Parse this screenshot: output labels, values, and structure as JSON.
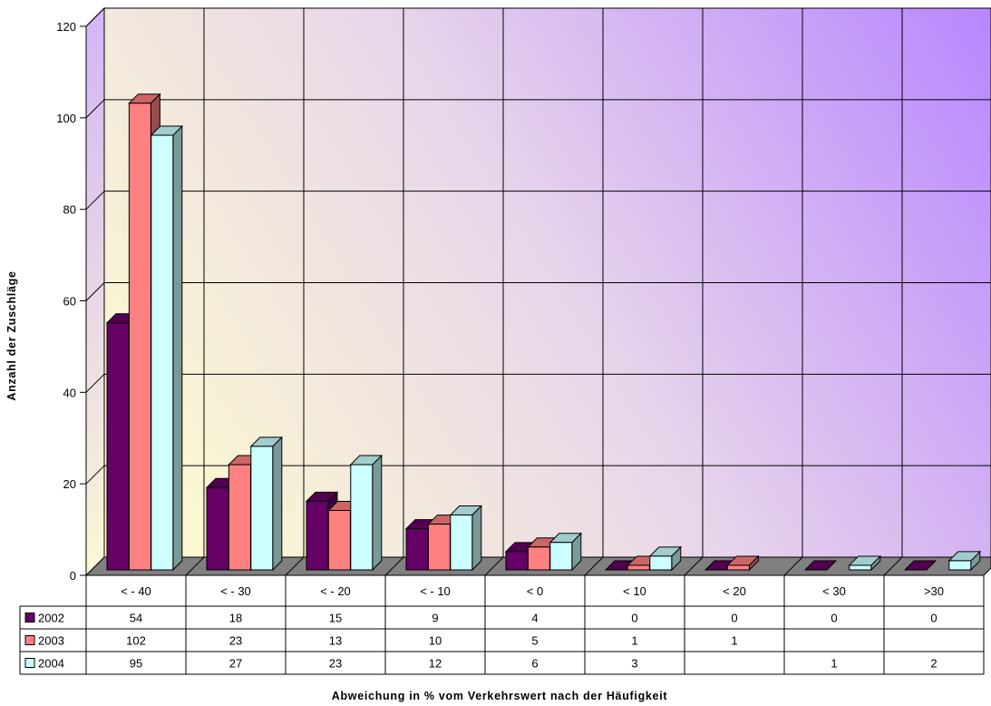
{
  "chart_data": {
    "type": "bar",
    "xlabel": "Abweichung in % vom Verkehrswert nach der Häufigkeit",
    "ylabel": "Anzahl der Zuschläge",
    "categories": [
      "< - 40",
      "< - 30",
      "< - 20",
      "< - 10",
      "< 0",
      "< 10",
      "< 20",
      "< 30",
      ">30"
    ],
    "series": [
      {
        "name": "2002",
        "color": "#660066",
        "values": [
          54,
          18,
          15,
          9,
          4,
          0,
          0,
          0,
          0
        ]
      },
      {
        "name": "2003",
        "color": "#FF8080",
        "values": [
          102,
          23,
          13,
          10,
          5,
          1,
          1,
          null,
          null
        ]
      },
      {
        "name": "2004",
        "color": "#CCFFFF",
        "values": [
          95,
          27,
          23,
          12,
          6,
          3,
          null,
          1,
          2
        ]
      }
    ],
    "ylim": [
      0,
      120
    ],
    "y_ticks": [
      0,
      20,
      40,
      60,
      80,
      100,
      120
    ],
    "grid": true,
    "legend": "bottom-left"
  }
}
